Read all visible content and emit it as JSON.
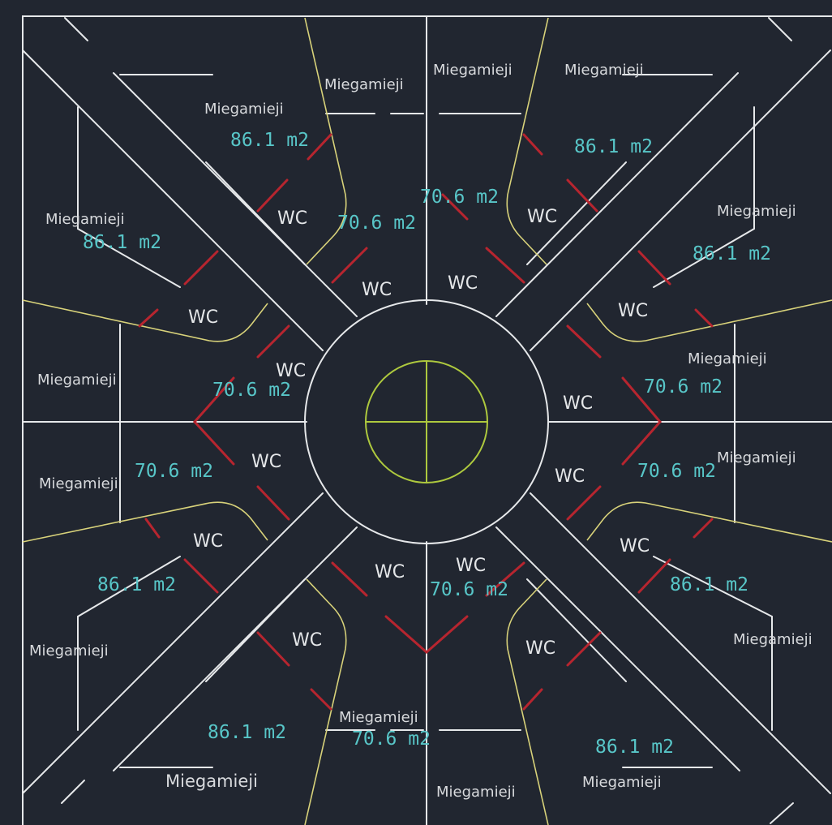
{
  "colors": {
    "background": "#212630",
    "wall_lines": "#e6e8ea",
    "boundary_lines": "#d8d27a",
    "door_marks": "#b7252f",
    "center_symbol": "#aec93e",
    "area_text": "#58c6c8",
    "label_text": "#e4e6e8"
  },
  "labels": {
    "bedroom": "Miegamieji",
    "wc": "WC",
    "area_large": "86.1 m2",
    "area_small": "70.6 m2"
  }
}
